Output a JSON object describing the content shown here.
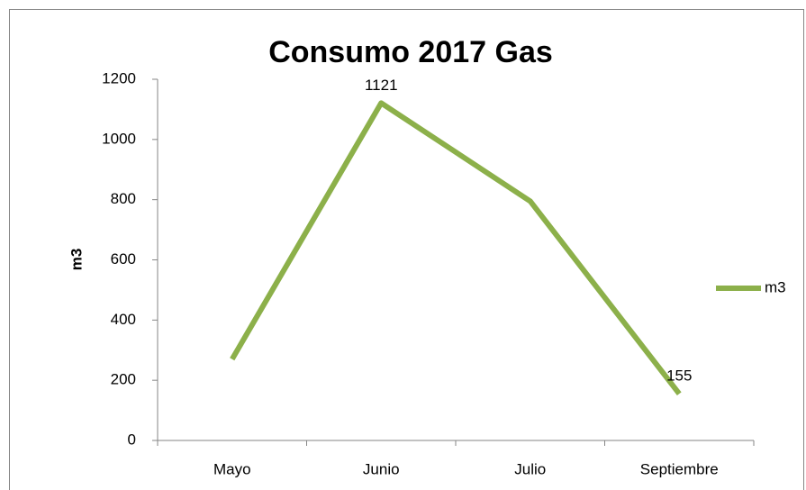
{
  "chart_data": {
    "type": "line",
    "title": "Consumo 2017 Gas",
    "y_label": "m3",
    "categories": [
      "Mayo",
      "Junio",
      "Julio",
      "Septiembre"
    ],
    "series": [
      {
        "name": "m3",
        "color": "#8cb04a",
        "values": [
          270,
          1121,
          795,
          155
        ],
        "value_labels": [
          null,
          "1121",
          null,
          "155"
        ]
      }
    ],
    "ylim": [
      0,
      1200
    ],
    "yticks": [
      0,
      200,
      400,
      600,
      800,
      1000,
      1200
    ],
    "grid": false,
    "legend": "right"
  }
}
